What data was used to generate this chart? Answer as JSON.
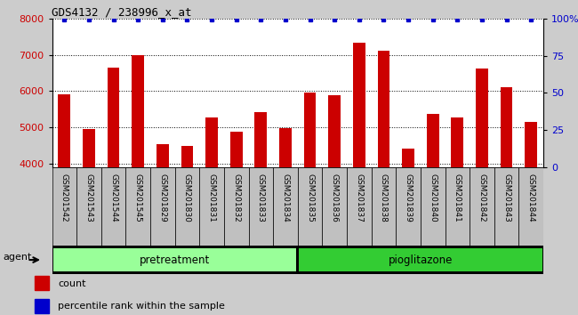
{
  "title": "GDS4132 / 238996_x_at",
  "categories": [
    "GSM201542",
    "GSM201543",
    "GSM201544",
    "GSM201545",
    "GSM201829",
    "GSM201830",
    "GSM201831",
    "GSM201832",
    "GSM201833",
    "GSM201834",
    "GSM201835",
    "GSM201836",
    "GSM201837",
    "GSM201838",
    "GSM201839",
    "GSM201840",
    "GSM201841",
    "GSM201842",
    "GSM201843",
    "GSM201844"
  ],
  "values": [
    5900,
    4950,
    6650,
    7000,
    4520,
    4480,
    5280,
    4870,
    5430,
    4980,
    5950,
    5880,
    7330,
    7130,
    4400,
    5360,
    5270,
    6620,
    6100,
    5150
  ],
  "bar_color": "#cc0000",
  "percentile_color": "#0000cc",
  "ylim_left": [
    3900,
    8000
  ],
  "ylim_right": [
    0,
    100
  ],
  "yticks_left": [
    4000,
    5000,
    6000,
    7000,
    8000
  ],
  "yticks_right": [
    0,
    25,
    50,
    75,
    100
  ],
  "ytick_labels_right": [
    "0",
    "25",
    "50",
    "75",
    "100%"
  ],
  "pretreatment_label": "pretreatment",
  "pioglitazone_label": "pioglitazone",
  "n_pretreatment": 10,
  "n_pioglitazone": 10,
  "group1_color": "#99ff99",
  "group2_color": "#33cc33",
  "agent_label": "agent",
  "legend_count_label": "count",
  "legend_percentile_label": "percentile rank within the sample",
  "background_color": "#cccccc",
  "xtick_bg_color": "#c0c0c0",
  "plot_bg_color": "#ffffff",
  "bar_width": 0.5
}
